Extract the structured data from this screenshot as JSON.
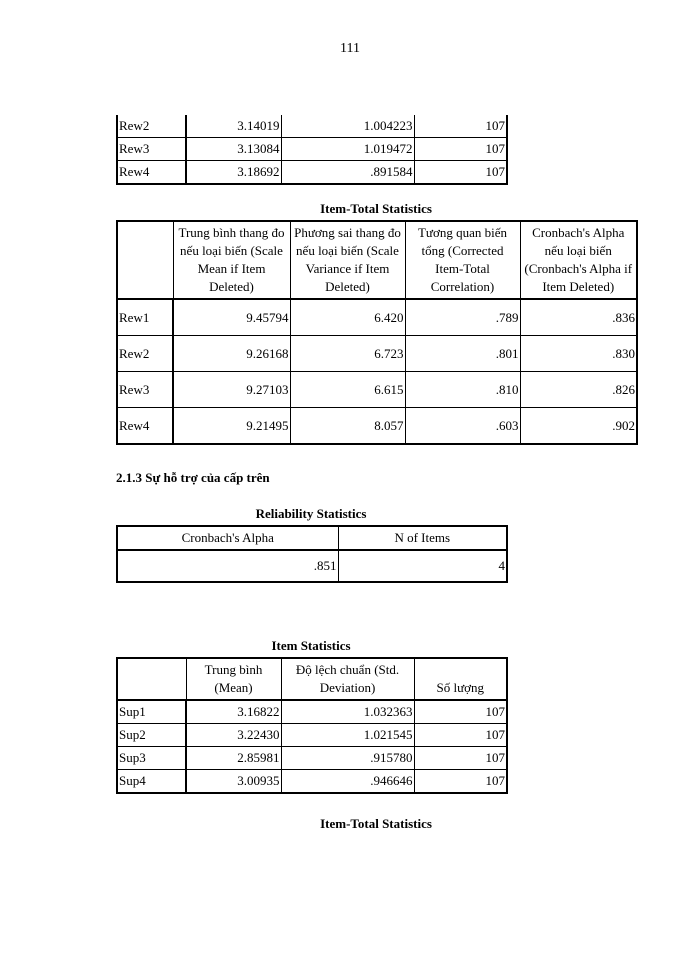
{
  "page_number": "111",
  "rew_item_stats_tail": {
    "rows": [
      [
        "Rew2",
        "3.14019",
        "1.004223",
        "107"
      ],
      [
        "Rew3",
        "3.13084",
        "1.019472",
        "107"
      ],
      [
        "Rew4",
        "3.18692",
        ".891584",
        "107"
      ]
    ]
  },
  "rew_item_total": {
    "title": "Item-Total Statistics",
    "headers": [
      "",
      "Trung bình thang đo nếu loại biến (Scale Mean if Item Deleted)",
      "Phương sai thang đo nếu loại biến (Scale Variance if Item Deleted)",
      "Tương quan biến tổng (Corrected Item-Total Correlation)",
      "Cronbach's Alpha nếu loại biến (Cronbach's Alpha if Item Deleted)"
    ],
    "rows": [
      [
        "Rew1",
        "9.45794",
        "6.420",
        ".789",
        ".836"
      ],
      [
        "Rew2",
        "9.26168",
        "6.723",
        ".801",
        ".830"
      ],
      [
        "Rew3",
        "9.27103",
        "6.615",
        ".810",
        ".826"
      ],
      [
        "Rew4",
        "9.21495",
        "8.057",
        ".603",
        ".902"
      ]
    ]
  },
  "section_heading": "2.1.3 Sự hỗ trợ của cấp trên",
  "sup_reliability": {
    "title": "Reliability Statistics",
    "headers": [
      "Cronbach's Alpha",
      "N of Items"
    ],
    "rows": [
      [
        ".851",
        "4"
      ]
    ]
  },
  "sup_item_stats": {
    "title": "Item Statistics",
    "headers": [
      "",
      "Trung bình (Mean)",
      "Độ lệch chuẩn (Std. Deviation)",
      "Số lượng"
    ],
    "rows": [
      [
        "Sup1",
        "3.16822",
        "1.032363",
        "107"
      ],
      [
        "Sup2",
        "3.22430",
        "1.021545",
        "107"
      ],
      [
        "Sup3",
        "2.85981",
        ".915780",
        "107"
      ],
      [
        "Sup4",
        "3.00935",
        ".946646",
        "107"
      ]
    ]
  },
  "sup_item_total_title": "Item-Total Statistics"
}
